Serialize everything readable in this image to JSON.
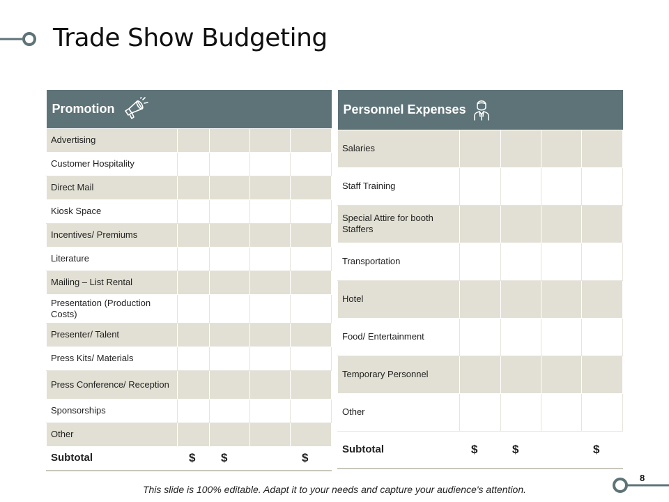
{
  "slide": {
    "title": "Trade Show Budgeting",
    "page_number": "8",
    "footer": "This slide is 100% editable. Adapt it to your needs and capture your audience's attention.",
    "colors": {
      "header_bg": "#5e7378",
      "row_shaded": "#e2e0d4",
      "accent_circle": "#5e7378"
    }
  },
  "promotion": {
    "heading": "Promotion",
    "icon": "megaphone-icon",
    "rows": [
      "Advertising",
      "Customer Hospitality",
      "Direct Mail",
      "Kiosk Space",
      "Incentives/ Premiums",
      "Literature",
      "Mailing – List Rental",
      "Presentation (Production Costs)",
      "Presenter/ Talent",
      "Press Kits/ Materials",
      "Press Conference/ Reception",
      "Sponsorships",
      "Other"
    ],
    "subtotal_label": "Subtotal",
    "subtotal_values": [
      "$",
      "$",
      "",
      "$"
    ]
  },
  "personnel": {
    "heading": "Personnel Expenses",
    "icon": "person-icon",
    "rows": [
      "Salaries",
      "Staff Training",
      "Special Attire for booth Staffers",
      "Transportation",
      "Hotel",
      "Food/ Entertainment",
      "Temporary Personnel",
      "Other"
    ],
    "subtotal_label": "Subtotal",
    "subtotal_values": [
      "$",
      "$",
      "",
      "$"
    ]
  }
}
